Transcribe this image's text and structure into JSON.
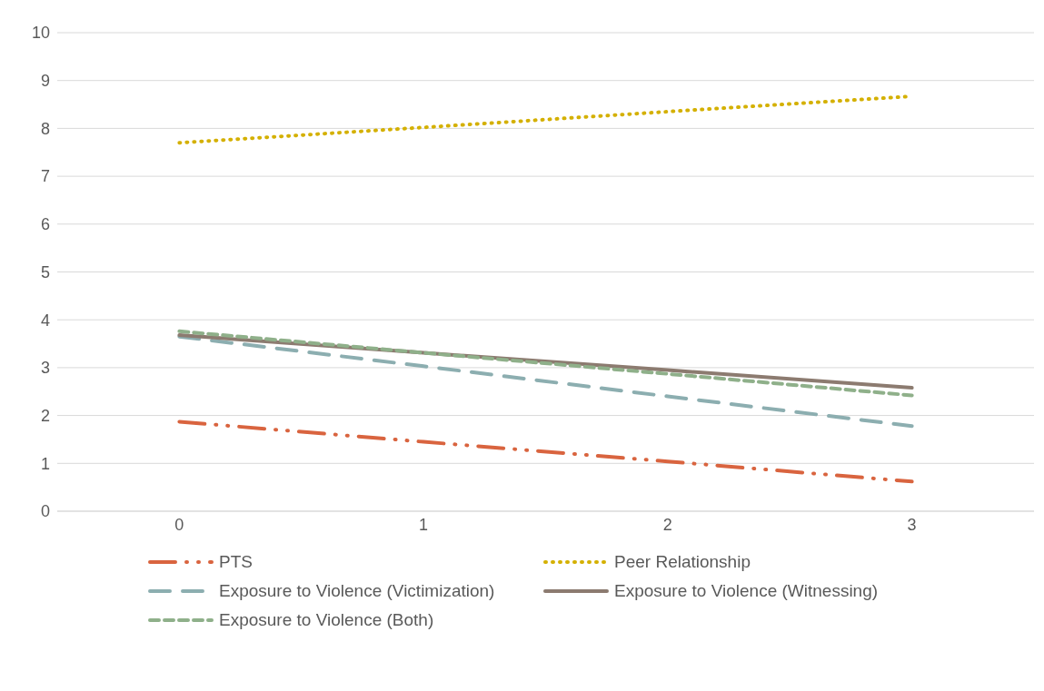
{
  "chart_data": {
    "type": "line",
    "categories": [
      "0",
      "1",
      "2",
      "3"
    ],
    "series": [
      {
        "name": "PTS",
        "color": "#d9643f",
        "line_style": "dashdot",
        "values": [
          1.87,
          1.45,
          1.04,
          0.62
        ]
      },
      {
        "name": "Peer Relationship",
        "color": "#d4b000",
        "line_style": "dotted",
        "values": [
          7.7,
          8.02,
          8.35,
          8.67
        ]
      },
      {
        "name": "Exposure to Violence (Victimization)",
        "color": "#8caeb0",
        "line_style": "longdash",
        "values": [
          3.65,
          3.03,
          2.4,
          1.78
        ]
      },
      {
        "name": "Exposure to Violence (Witnessing)",
        "color": "#8c7b70",
        "line_style": "solid",
        "values": [
          3.68,
          3.31,
          2.95,
          2.58
        ]
      },
      {
        "name": "Exposure to Violence (Both)",
        "color": "#8fb08a",
        "line_style": "dashed",
        "values": [
          3.76,
          3.31,
          2.87,
          2.42
        ]
      }
    ],
    "ylim": [
      0,
      10
    ],
    "yticks": [
      0,
      1,
      2,
      3,
      4,
      5,
      6,
      7,
      8,
      9,
      10
    ],
    "grid": "y",
    "legend": "bottom",
    "marker": "none"
  }
}
